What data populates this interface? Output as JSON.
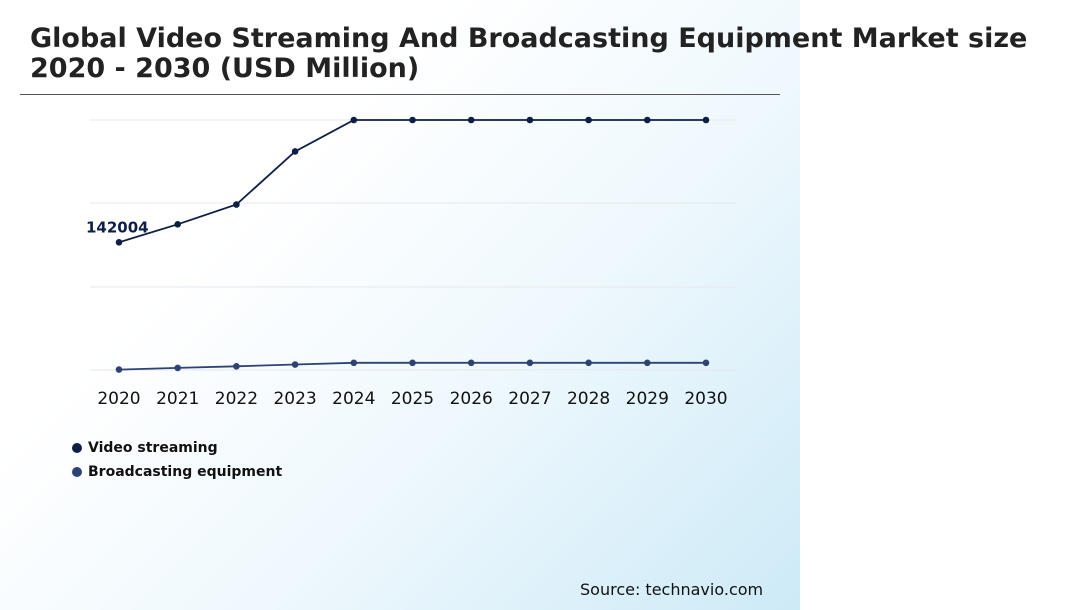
{
  "title": {
    "line1": "Global Video Streaming And Broadcasting Equipment Market size",
    "line2": "2020 - 2030 (USD Million)"
  },
  "source": "Source: technavio.com",
  "colors": {
    "video_streaming": "#0d1f45",
    "broadcasting_equipment": "#2e4373",
    "gridline": "#e4e8ec"
  },
  "chart_data": {
    "type": "line",
    "title": "Global Video Streaming And Broadcasting Equipment Market size 2020 - 2030 (USD Million)",
    "x": [
      "2020",
      "2021",
      "2022",
      "2023",
      "2024",
      "2025",
      "2026",
      "2027",
      "2028",
      "2029",
      "2030"
    ],
    "ylim": [
      0,
      450000
    ],
    "grid": true,
    "legend_position": "bottom-left",
    "series": [
      {
        "name": "Video streaming",
        "values": [
          142004,
          162000,
          184000,
          243000,
          278000,
          278000,
          278000,
          278000,
          278000,
          278000,
          278000
        ],
        "data_label": "142004"
      },
      {
        "name": "Broadcasting equipment",
        "values": [
          500,
          2300,
          4100,
          6100,
          8000,
          8000,
          8000,
          8000,
          8000,
          8000,
          8000
        ]
      }
    ]
  }
}
